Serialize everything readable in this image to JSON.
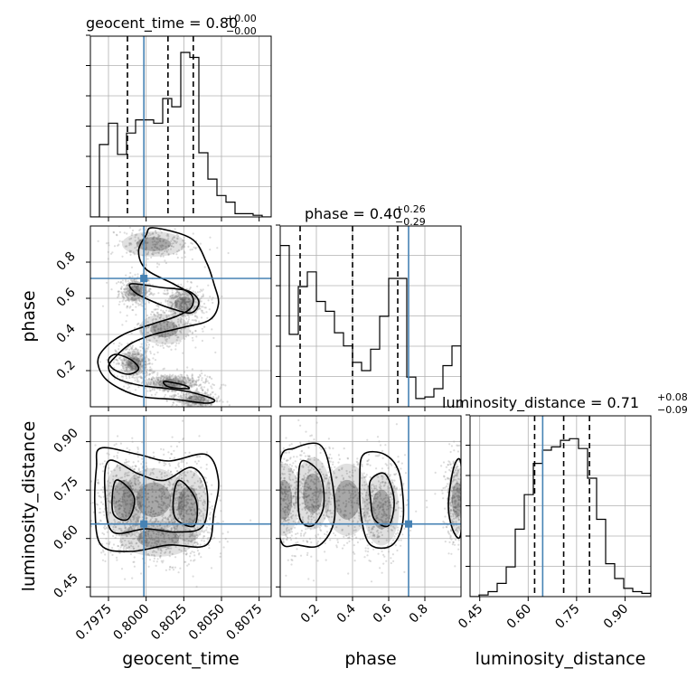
{
  "chart_data": {
    "type": "corner",
    "parameters": [
      "geocent_time",
      "phase",
      "luminosity_distance"
    ],
    "axis_labels": {
      "geocent_time": "geocent_time",
      "phase": "phase",
      "luminosity_distance": "luminosity_distance"
    },
    "titles": [
      {
        "param": "geocent_time",
        "text": "geocent_time = 0.80",
        "plus": "+0.00",
        "minus": "−0.00"
      },
      {
        "param": "phase",
        "text": "phase = 0.40",
        "plus": "+0.26",
        "minus": "−0.29"
      },
      {
        "param": "luminosity_distance",
        "text": "luminosity_distance = 0.71",
        "plus": "+0.08",
        "minus": "−0.09"
      }
    ],
    "ranges": {
      "geocent_time": [
        0.7963,
        0.8083
      ],
      "phase": [
        0.0,
        1.0
      ],
      "luminosity_distance": [
        0.42,
        0.98
      ]
    },
    "ticks": {
      "geocent_time": {
        "values": [
          0.7975,
          0.8,
          0.8025,
          0.805,
          0.8075
        ],
        "labels": [
          "0.7975",
          "0.8000",
          "0.8025",
          "0.8050",
          "0.8075"
        ]
      },
      "phase": {
        "values": [
          0.2,
          0.4,
          0.6,
          0.8
        ],
        "labels": [
          "0.2",
          "0.4",
          "0.6",
          "0.8"
        ]
      },
      "luminosity_distance": {
        "values": [
          0.45,
          0.6,
          0.75,
          0.9
        ],
        "labels": [
          "0.45",
          "0.60",
          "0.75",
          "0.90"
        ]
      }
    },
    "truths": {
      "geocent_time": 0.79985,
      "phase": 0.71,
      "luminosity_distance": 0.645
    },
    "quantiles": {
      "geocent_time": [
        0.79876,
        0.80145,
        0.80313
      ],
      "phase": [
        0.11,
        0.4,
        0.65
      ],
      "luminosity_distance": [
        0.62,
        0.71,
        0.79
      ]
    },
    "histograms": {
      "geocent_time": {
        "edges": [
          0.7963,
          0.7969,
          0.7975,
          0.7981,
          0.7987,
          0.7993,
          0.7999,
          0.8005,
          0.8011,
          0.8017,
          0.8023,
          0.8029,
          0.8035,
          0.8041,
          0.8047,
          0.8053,
          0.8059,
          0.8065,
          0.8071,
          0.8077,
          0.8083
        ],
        "counts": [
          0.0,
          0.44,
          0.57,
          0.38,
          0.51,
          0.59,
          0.59,
          0.57,
          0.72,
          0.67,
          1.0,
          0.97,
          0.39,
          0.23,
          0.13,
          0.09,
          0.02,
          0.02,
          0.01,
          0.0
        ]
      },
      "phase": {
        "edges": [
          0.0,
          0.05,
          0.1,
          0.15,
          0.2,
          0.25,
          0.3,
          0.35,
          0.4,
          0.45,
          0.5,
          0.55,
          0.6,
          0.65,
          0.7,
          0.75,
          0.8,
          0.85,
          0.9,
          0.95,
          1.0
        ],
        "counts": [
          0.98,
          0.44,
          0.73,
          0.82,
          0.64,
          0.58,
          0.45,
          0.37,
          0.27,
          0.22,
          0.35,
          0.55,
          0.78,
          0.78,
          0.18,
          0.05,
          0.06,
          0.11,
          0.25,
          0.37
        ]
      },
      "luminosity_distance": {
        "edges": [
          0.42,
          0.448,
          0.476,
          0.504,
          0.532,
          0.56,
          0.588,
          0.616,
          0.644,
          0.672,
          0.7,
          0.728,
          0.756,
          0.784,
          0.812,
          0.84,
          0.868,
          0.896,
          0.924,
          0.952,
          0.98
        ],
        "counts": [
          0.0,
          0.01,
          0.03,
          0.08,
          0.18,
          0.41,
          0.62,
          0.81,
          0.89,
          0.91,
          0.95,
          0.96,
          0.9,
          0.72,
          0.47,
          0.2,
          0.11,
          0.05,
          0.03,
          0.02
        ]
      }
    }
  }
}
